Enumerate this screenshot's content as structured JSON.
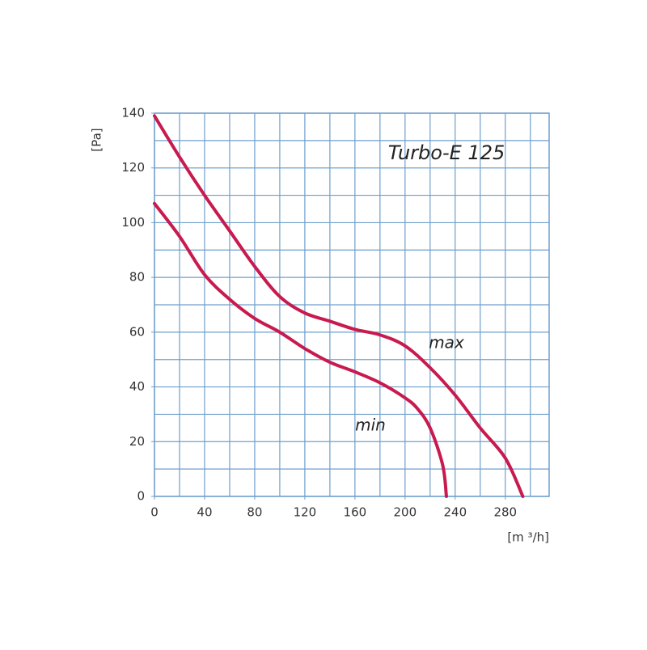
{
  "chart_data": {
    "type": "line",
    "title": "Turbo-E 125",
    "x_label": "[m ³/h]",
    "y_label": "[Pa]",
    "annotations": [
      "max",
      "min"
    ],
    "xlim": [
      0,
      315
    ],
    "ylim": [
      0,
      140
    ],
    "xticks": [
      0,
      40,
      80,
      120,
      160,
      200,
      240,
      280
    ],
    "yticks": [
      0,
      20,
      40,
      60,
      80,
      100,
      120,
      140
    ],
    "xgrid": [
      0,
      20,
      40,
      60,
      80,
      100,
      120,
      140,
      160,
      180,
      200,
      220,
      240,
      260,
      280,
      300
    ],
    "ygrid": [
      0,
      10,
      20,
      30,
      40,
      50,
      60,
      70,
      80,
      90,
      100,
      110,
      120,
      130,
      140
    ],
    "grid": true,
    "grid_color": "#6f9fcc",
    "series": [
      {
        "name": "max",
        "color": "#c81a4e",
        "x": [
          0,
          20,
          40,
          60,
          80,
          100,
          120,
          140,
          160,
          180,
          200,
          220,
          240,
          260,
          280,
          294
        ],
        "values": [
          139,
          124,
          110,
          97,
          84,
          73,
          67,
          64,
          61,
          59,
          55,
          47,
          37,
          25,
          14,
          0
        ]
      },
      {
        "name": "min",
        "color": "#c81a4e",
        "x": [
          0,
          20,
          40,
          60,
          80,
          100,
          120,
          140,
          160,
          180,
          200,
          210,
          220,
          230,
          233
        ],
        "values": [
          107,
          95,
          81,
          72,
          65,
          60,
          54,
          49,
          45.5,
          41.5,
          36,
          32,
          25,
          11.5,
          0
        ]
      }
    ]
  }
}
